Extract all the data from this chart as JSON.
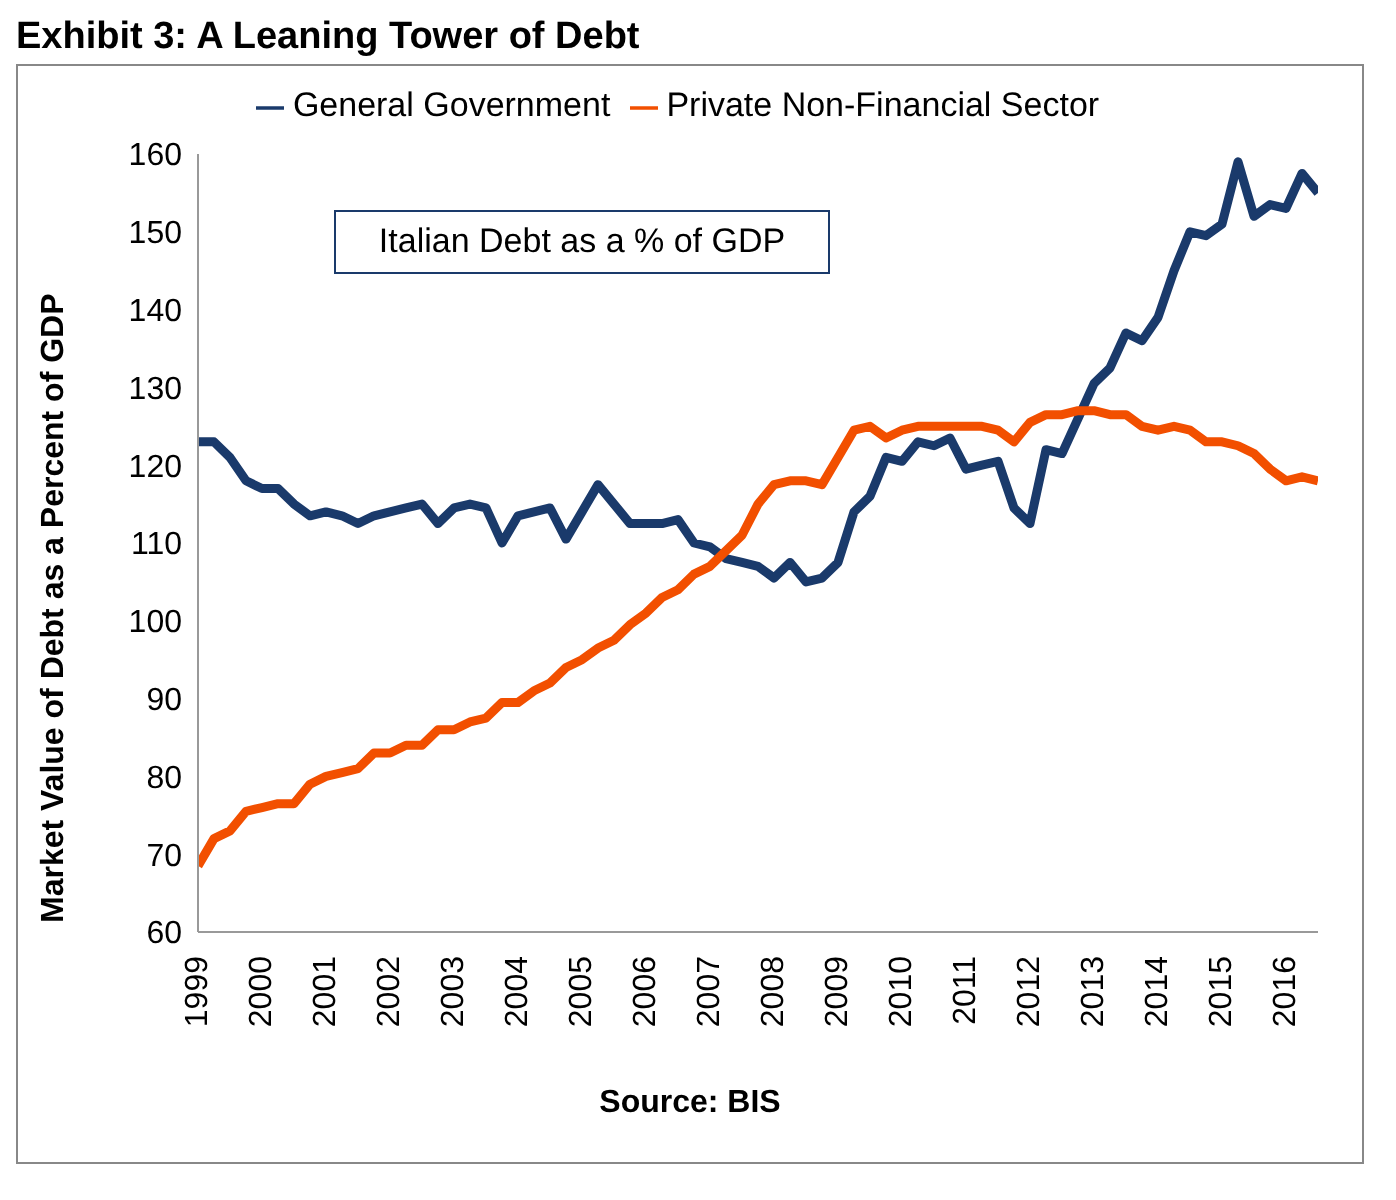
{
  "chart_data": {
    "type": "line",
    "title": "Exhibit 3: A Leaning Tower of Debt",
    "ylabel": "Market Value of Debt as a Percent of GDP",
    "annotations": [
      "Italian Debt as a % of GDP",
      "Source: BIS"
    ],
    "x": [
      1999,
      1999.25,
      1999.5,
      1999.75,
      2000,
      2000.25,
      2000.5,
      2000.75,
      2001,
      2001.25,
      2001.5,
      2001.75,
      2002,
      2002.25,
      2002.5,
      2002.75,
      2003,
      2003.25,
      2003.5,
      2003.75,
      2004,
      2004.25,
      2004.5,
      2004.75,
      2005,
      2005.25,
      2005.5,
      2005.75,
      2006,
      2006.25,
      2006.5,
      2006.75,
      2007,
      2007.25,
      2007.5,
      2007.75,
      2008,
      2008.25,
      2008.5,
      2008.75,
      2009,
      2009.25,
      2009.5,
      2009.75,
      2010,
      2010.25,
      2010.5,
      2010.75,
      2011,
      2011.25,
      2011.5,
      2011.75,
      2012,
      2012.25,
      2012.5,
      2012.75,
      2013,
      2013.25,
      2013.5,
      2013.75,
      2014,
      2014.25,
      2014.5,
      2014.75,
      2015,
      2015.25,
      2015.5,
      2015.75,
      2016,
      2016.25,
      2016.5
    ],
    "series": [
      {
        "name": "General Government",
        "color": "#1a3a6b",
        "values": [
          123,
          123,
          121,
          118,
          117,
          117,
          115,
          113.5,
          114,
          113.5,
          112.5,
          113.5,
          114,
          114.5,
          115,
          112.5,
          114.5,
          115,
          114.5,
          110,
          113.5,
          114,
          114.5,
          110.5,
          114,
          117.5,
          115,
          112.5,
          112.5,
          112.5,
          113,
          110,
          109.5,
          108,
          107.5,
          107,
          105.5,
          107.5,
          105,
          105.5,
          107.5,
          114,
          116,
          121,
          120.5,
          123,
          122.5,
          123.5,
          119.5,
          120,
          120.5,
          114.5,
          112.5,
          122,
          121.5,
          126,
          130.5,
          132.5,
          137,
          136,
          139,
          145,
          150,
          149.5,
          151,
          159,
          152,
          153.5,
          153,
          157.5,
          155
        ]
      },
      {
        "name": "Private Non-Financial Sector",
        "color": "#f24f00",
        "values": [
          68.5,
          72,
          73,
          75.5,
          76,
          76.5,
          76.5,
          79,
          80,
          80.5,
          81,
          83,
          83,
          84,
          84,
          86,
          86,
          87,
          87.5,
          89.5,
          89.5,
          91,
          92,
          94,
          95,
          96.5,
          97.5,
          99.5,
          101,
          103,
          104,
          106,
          107,
          109,
          111,
          115,
          117.5,
          118,
          118,
          117.5,
          121,
          124.5,
          125,
          123.5,
          124.5,
          125,
          125,
          125,
          125,
          125,
          124.5,
          123,
          125.5,
          126.5,
          126.5,
          127,
          127,
          126.5,
          126.5,
          125,
          124.5,
          125,
          124.5,
          123,
          123,
          122.5,
          121.5,
          119.5,
          118,
          118.5,
          118
        ]
      }
    ],
    "xlim": [
      1999,
      2016.5
    ],
    "xticks": [
      1999,
      2000,
      2001,
      2002,
      2003,
      2004,
      2005,
      2006,
      2007,
      2008,
      2009,
      2010,
      2011,
      2012,
      2013,
      2014,
      2015,
      2016
    ],
    "ylim": [
      60,
      160
    ],
    "yticks": [
      60,
      70,
      80,
      90,
      100,
      110,
      120,
      130,
      140,
      150,
      160
    ],
    "legend": "top",
    "grid": false
  }
}
